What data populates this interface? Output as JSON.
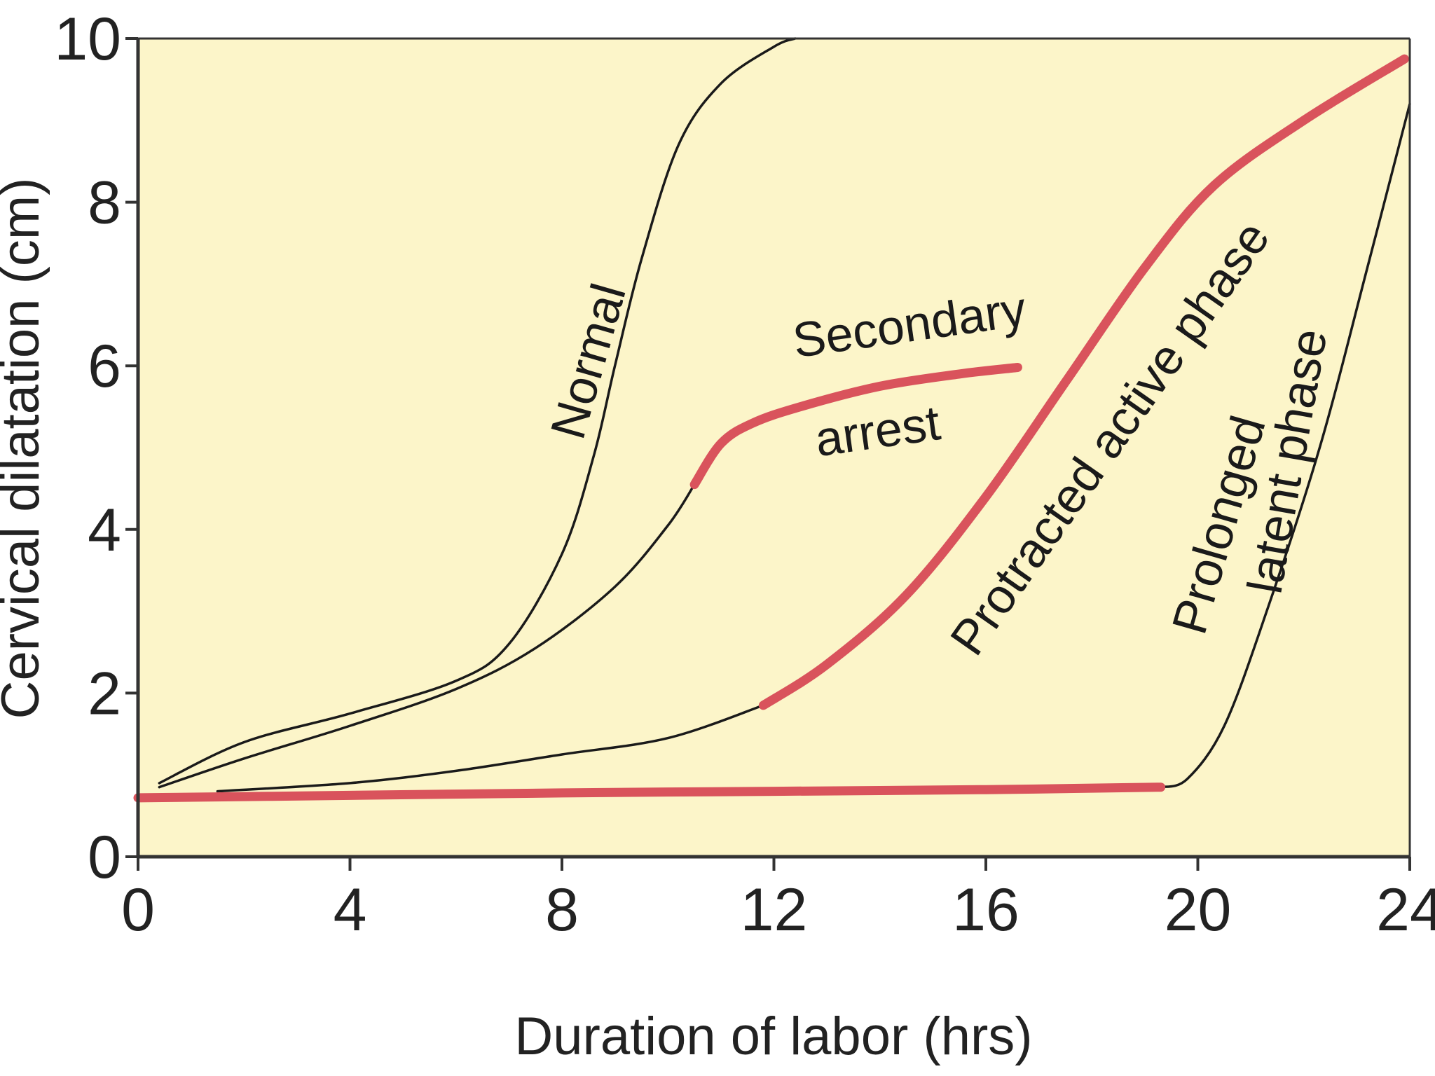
{
  "chart_data": {
    "type": "line",
    "xlabel": "Duration of labor (hrs)",
    "ylabel": "Cervical dilatation (cm)",
    "xlim": [
      0,
      24
    ],
    "ylim": [
      0,
      10
    ],
    "xticks": [
      0,
      4,
      8,
      12,
      16,
      20,
      24
    ],
    "yticks": [
      0,
      2,
      4,
      6,
      8,
      10
    ],
    "grid": false,
    "legend": "none",
    "colors": {
      "background": "#fcf5c9",
      "normal_curve": "#1a1a1a",
      "abnormal_curve": "#d9535c",
      "axis": "#333333"
    },
    "series": [
      {
        "key": "normal",
        "style": "thin",
        "points": [
          [
            0.4,
            0.9
          ],
          [
            2.0,
            1.4
          ],
          [
            4.0,
            1.75
          ],
          [
            6.0,
            2.15
          ],
          [
            7.0,
            2.6
          ],
          [
            8.0,
            3.7
          ],
          [
            8.6,
            4.9
          ],
          [
            9.0,
            6.0
          ],
          [
            9.5,
            7.3
          ],
          [
            10.2,
            8.7
          ],
          [
            11.0,
            9.45
          ],
          [
            12.0,
            9.9
          ],
          [
            12.4,
            10.0
          ]
        ]
      },
      {
        "key": "secondary_arrest_lead",
        "style": "thin",
        "points": [
          [
            0.4,
            0.85
          ],
          [
            2.0,
            1.2
          ],
          [
            4.0,
            1.6
          ],
          [
            6.0,
            2.05
          ],
          [
            7.5,
            2.55
          ],
          [
            9.0,
            3.3
          ],
          [
            10.0,
            4.05
          ],
          [
            10.5,
            4.55
          ]
        ]
      },
      {
        "key": "secondary_arrest",
        "style": "thick",
        "points": [
          [
            10.5,
            4.55
          ],
          [
            11.0,
            5.05
          ],
          [
            11.6,
            5.3
          ],
          [
            12.5,
            5.5
          ],
          [
            14.0,
            5.75
          ],
          [
            15.5,
            5.9
          ],
          [
            16.6,
            5.98
          ]
        ]
      },
      {
        "key": "protracted_active_lead",
        "style": "thin",
        "points": [
          [
            1.5,
            0.8
          ],
          [
            4.0,
            0.9
          ],
          [
            6.0,
            1.05
          ],
          [
            8.0,
            1.25
          ],
          [
            10.0,
            1.45
          ],
          [
            11.8,
            1.85
          ]
        ]
      },
      {
        "key": "protracted_active_phase",
        "style": "thick",
        "points": [
          [
            11.8,
            1.85
          ],
          [
            13.0,
            2.35
          ],
          [
            14.5,
            3.2
          ],
          [
            16.0,
            4.4
          ],
          [
            17.5,
            5.8
          ],
          [
            19.0,
            7.2
          ],
          [
            20.3,
            8.2
          ],
          [
            22.0,
            9.0
          ],
          [
            23.9,
            9.75
          ]
        ]
      },
      {
        "key": "prolonged_latent_phase",
        "style": "thick",
        "points": [
          [
            0.0,
            0.72
          ],
          [
            4.0,
            0.75
          ],
          [
            8.0,
            0.78
          ],
          [
            12.0,
            0.8
          ],
          [
            16.0,
            0.82
          ],
          [
            19.3,
            0.85
          ]
        ]
      },
      {
        "key": "prolonged_latent_tail",
        "style": "thin",
        "points": [
          [
            19.3,
            0.85
          ],
          [
            19.8,
            0.95
          ],
          [
            20.5,
            1.6
          ],
          [
            21.3,
            3.0
          ],
          [
            22.3,
            5.0
          ],
          [
            23.2,
            7.2
          ],
          [
            24.0,
            9.2
          ]
        ]
      }
    ],
    "annotations": [
      {
        "text": "Normal",
        "x": 8.8,
        "y": 6.0,
        "rotate_deg": -74
      },
      {
        "text": "Secondary",
        "x": 14.6,
        "y": 6.3,
        "rotate_deg": -8
      },
      {
        "text": "arrest",
        "x": 14.0,
        "y": 5.0,
        "rotate_deg": -8
      },
      {
        "text": "Protracted active phase",
        "x": 18.6,
        "y": 5.0,
        "rotate_deg": -55
      },
      {
        "text": "Prolonged",
        "x": 20.7,
        "y": 4.0,
        "rotate_deg": -74
      },
      {
        "text": "latent phase",
        "x": 22.0,
        "y": 4.8,
        "rotate_deg": -80
      }
    ]
  }
}
